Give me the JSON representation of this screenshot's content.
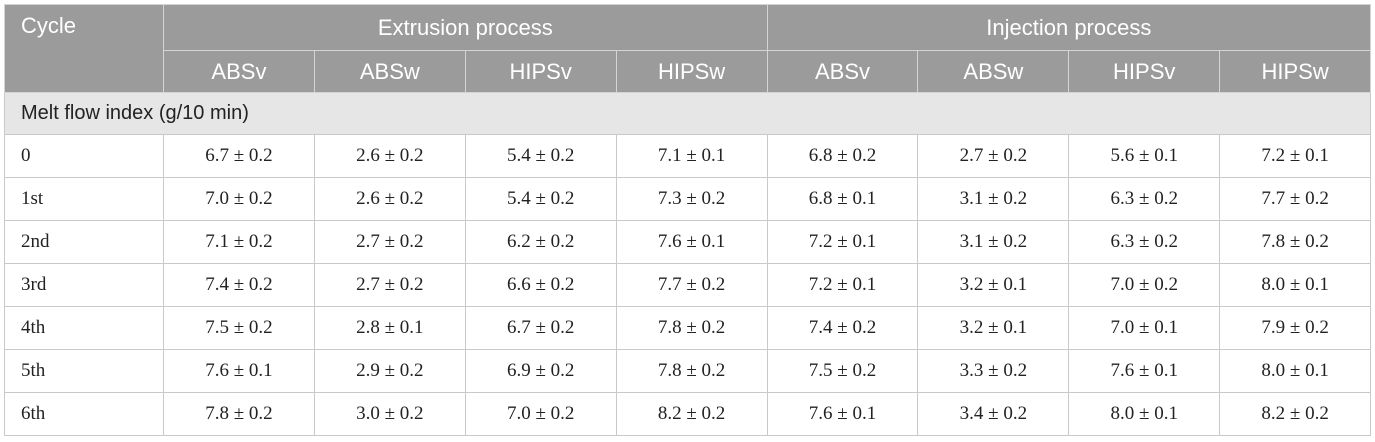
{
  "table": {
    "cycle_header": "Cycle",
    "groups": [
      "Extrusion process",
      "Injection process"
    ],
    "subheaders": [
      "ABSv",
      "ABSw",
      "HIPSv",
      "HIPSw",
      "ABSv",
      "ABSw",
      "HIPSv",
      "HIPSw"
    ],
    "section_title": "Melt flow index (g/10 min)",
    "rows": [
      {
        "cycle": "0",
        "values": [
          "6.7 ± 0.2",
          "2.6 ± 0.2",
          "5.4 ± 0.2",
          "7.1 ± 0.1",
          "6.8 ± 0.2",
          "2.7 ± 0.2",
          "5.6 ± 0.1",
          "7.2 ± 0.1"
        ]
      },
      {
        "cycle": "1st",
        "values": [
          "7.0 ± 0.2",
          "2.6 ± 0.2",
          "5.4 ± 0.2",
          "7.3 ± 0.2",
          "6.8 ± 0.1",
          "3.1 ± 0.2",
          "6.3 ± 0.2",
          "7.7 ± 0.2"
        ]
      },
      {
        "cycle": "2nd",
        "values": [
          "7.1 ± 0.2",
          "2.7 ± 0.2",
          "6.2 ± 0.2",
          "7.6 ± 0.1",
          "7.2 ± 0.1",
          "3.1 ± 0.2",
          "6.3 ± 0.2",
          "7.8 ± 0.2"
        ]
      },
      {
        "cycle": "3rd",
        "values": [
          "7.4 ± 0.2",
          "2.7 ± 0.2",
          "6.6 ± 0.2",
          "7.7 ± 0.2",
          "7.2 ± 0.1",
          "3.2 ± 0.1",
          "7.0 ± 0.2",
          "8.0 ± 0.1"
        ]
      },
      {
        "cycle": "4th",
        "values": [
          "7.5 ± 0.2",
          "2.8 ± 0.1",
          "6.7 ± 0.2",
          "7.8 ± 0.2",
          "7.4 ± 0.2",
          "3.2 ± 0.1",
          "7.0 ± 0.1",
          "7.9 ± 0.2"
        ]
      },
      {
        "cycle": "5th",
        "values": [
          "7.6 ± 0.1",
          "2.9 ± 0.2",
          "6.9 ± 0.2",
          "7.8 ± 0.2",
          "7.5 ± 0.2",
          "3.3 ± 0.2",
          "7.6 ± 0.1",
          "8.0 ± 0.1"
        ]
      },
      {
        "cycle": "6th",
        "values": [
          "7.8 ± 0.2",
          "3.0 ± 0.2",
          "7.0 ± 0.2",
          "8.2 ± 0.2",
          "7.6 ± 0.1",
          "3.4 ± 0.2",
          "8.0 ± 0.1",
          "8.2 ± 0.2"
        ]
      }
    ]
  }
}
